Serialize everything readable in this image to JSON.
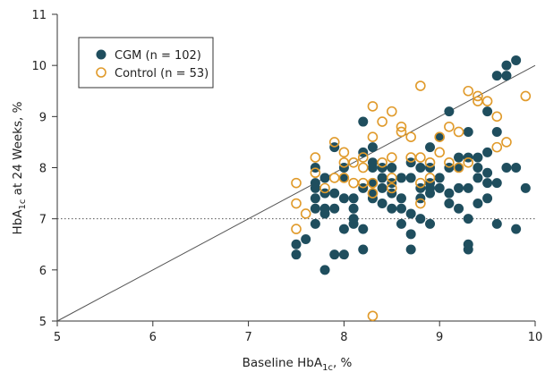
{
  "chart_data": {
    "type": "scatter",
    "xlim": [
      5,
      10
    ],
    "ylim": [
      5,
      11
    ],
    "x_ticks": [
      5,
      6,
      7,
      8,
      9,
      10
    ],
    "y_ticks": [
      5,
      6,
      7,
      8,
      9,
      10,
      11
    ],
    "xlabel": {
      "base": "Baseline HbA",
      "sub": "1c",
      "suffix": ", %"
    },
    "ylabel": {
      "base": "HbA",
      "sub": "1c",
      "suffix": " at 24 Weeks, %"
    },
    "reference_line": {
      "from": [
        5,
        5
      ],
      "to": [
        10,
        10
      ],
      "color": "#555555"
    },
    "threshold_line": {
      "y": 7,
      "style": "dotted",
      "color": "#555555"
    },
    "legend_position": "top-left",
    "series": [
      {
        "name": "CGM (n = 102)",
        "marker": "filled-circle",
        "color": "#1f4e5e",
        "points": [
          [
            7.5,
            6.3
          ],
          [
            7.5,
            6.5
          ],
          [
            7.6,
            6.6
          ],
          [
            7.7,
            6.9
          ],
          [
            7.7,
            7.2
          ],
          [
            7.7,
            7.4
          ],
          [
            7.7,
            7.6
          ],
          [
            7.7,
            7.7
          ],
          [
            7.7,
            8.0
          ],
          [
            7.8,
            6.0
          ],
          [
            7.8,
            7.1
          ],
          [
            7.8,
            7.2
          ],
          [
            7.8,
            7.5
          ],
          [
            7.8,
            7.8
          ],
          [
            7.9,
            6.3
          ],
          [
            7.9,
            7.5
          ],
          [
            7.9,
            8.4
          ],
          [
            8.0,
            6.3
          ],
          [
            8.0,
            6.8
          ],
          [
            8.0,
            7.4
          ],
          [
            8.0,
            7.8
          ],
          [
            8.1,
            6.9
          ],
          [
            8.1,
            7.0
          ],
          [
            8.1,
            7.2
          ],
          [
            8.1,
            7.4
          ],
          [
            8.2,
            6.4
          ],
          [
            8.2,
            6.8
          ],
          [
            8.2,
            7.6
          ],
          [
            8.2,
            8.3
          ],
          [
            8.2,
            8.9
          ],
          [
            8.3,
            7.4
          ],
          [
            8.3,
            7.5
          ],
          [
            8.3,
            7.7
          ],
          [
            8.3,
            8.0
          ],
          [
            8.3,
            8.1
          ],
          [
            8.3,
            8.4
          ],
          [
            8.4,
            7.3
          ],
          [
            8.4,
            7.6
          ],
          [
            8.4,
            7.8
          ],
          [
            8.5,
            7.2
          ],
          [
            8.5,
            7.5
          ],
          [
            8.5,
            7.7
          ],
          [
            8.6,
            6.9
          ],
          [
            8.6,
            7.2
          ],
          [
            8.6,
            7.8
          ],
          [
            8.7,
            6.4
          ],
          [
            8.7,
            6.7
          ],
          [
            8.7,
            7.1
          ],
          [
            8.7,
            7.8
          ],
          [
            8.7,
            8.1
          ],
          [
            8.8,
            7.0
          ],
          [
            8.8,
            7.4
          ],
          [
            8.8,
            8.0
          ],
          [
            8.9,
            6.9
          ],
          [
            8.9,
            7.5
          ],
          [
            8.9,
            7.6
          ],
          [
            8.9,
            7.7
          ],
          [
            8.9,
            8.0
          ],
          [
            9.0,
            7.8
          ],
          [
            9.0,
            8.6
          ],
          [
            9.1,
            7.5
          ],
          [
            9.1,
            8.0
          ],
          [
            9.1,
            9.1
          ],
          [
            9.2,
            7.6
          ],
          [
            9.2,
            8.0
          ],
          [
            9.2,
            8.2
          ],
          [
            9.3,
            6.4
          ],
          [
            9.3,
            6.5
          ],
          [
            9.3,
            7.0
          ],
          [
            9.3,
            7.6
          ],
          [
            9.3,
            8.2
          ],
          [
            9.3,
            8.7
          ],
          [
            9.4,
            7.8
          ],
          [
            9.4,
            8.0
          ],
          [
            9.4,
            8.2
          ],
          [
            9.5,
            7.4
          ],
          [
            9.5,
            7.7
          ],
          [
            9.5,
            8.3
          ],
          [
            9.5,
            9.1
          ],
          [
            9.6,
            6.9
          ],
          [
            9.6,
            7.7
          ],
          [
            9.6,
            8.7
          ],
          [
            9.6,
            9.8
          ],
          [
            9.7,
            8.0
          ],
          [
            9.7,
            9.8
          ],
          [
            9.7,
            10.0
          ],
          [
            9.8,
            6.8
          ],
          [
            9.8,
            8.0
          ],
          [
            9.8,
            10.1
          ],
          [
            9.9,
            7.6
          ],
          [
            8.4,
            8.0
          ],
          [
            8.6,
            7.4
          ],
          [
            8.9,
            8.4
          ],
          [
            9.1,
            7.3
          ],
          [
            9.4,
            7.3
          ],
          [
            9.5,
            7.9
          ],
          [
            8.0,
            8.0
          ],
          [
            8.5,
            8.0
          ],
          [
            8.8,
            7.6
          ],
          [
            9.2,
            7.2
          ],
          [
            7.9,
            7.2
          ],
          [
            9.0,
            7.6
          ]
        ]
      },
      {
        "name": "Control (n = 53)",
        "marker": "open-circle",
        "color": "#e09a2a",
        "points": [
          [
            7.5,
            6.8
          ],
          [
            7.5,
            7.3
          ],
          [
            7.5,
            7.7
          ],
          [
            7.6,
            7.1
          ],
          [
            7.7,
            7.9
          ],
          [
            7.7,
            8.2
          ],
          [
            7.8,
            7.6
          ],
          [
            7.9,
            7.8
          ],
          [
            7.9,
            8.5
          ],
          [
            8.0,
            7.8
          ],
          [
            8.0,
            8.1
          ],
          [
            8.0,
            8.3
          ],
          [
            8.1,
            8.1
          ],
          [
            8.1,
            7.7
          ],
          [
            8.2,
            7.7
          ],
          [
            8.2,
            8.0
          ],
          [
            8.2,
            8.2
          ],
          [
            8.3,
            7.5
          ],
          [
            8.3,
            7.7
          ],
          [
            8.3,
            8.6
          ],
          [
            8.3,
            9.2
          ],
          [
            8.3,
            5.1
          ],
          [
            8.4,
            8.1
          ],
          [
            8.4,
            8.9
          ],
          [
            8.5,
            7.6
          ],
          [
            8.5,
            7.8
          ],
          [
            8.5,
            8.2
          ],
          [
            8.5,
            9.1
          ],
          [
            8.6,
            8.7
          ],
          [
            8.6,
            8.8
          ],
          [
            8.7,
            8.2
          ],
          [
            8.7,
            8.6
          ],
          [
            8.8,
            7.3
          ],
          [
            8.8,
            7.7
          ],
          [
            8.8,
            8.2
          ],
          [
            8.8,
            9.6
          ],
          [
            8.9,
            7.8
          ],
          [
            8.9,
            8.1
          ],
          [
            9.0,
            8.3
          ],
          [
            9.0,
            8.6
          ],
          [
            9.1,
            8.1
          ],
          [
            9.1,
            8.8
          ],
          [
            9.2,
            8.0
          ],
          [
            9.2,
            8.7
          ],
          [
            9.3,
            8.1
          ],
          [
            9.3,
            9.5
          ],
          [
            9.4,
            9.3
          ],
          [
            9.4,
            9.4
          ],
          [
            9.5,
            9.3
          ],
          [
            9.6,
            9.0
          ],
          [
            9.6,
            8.4
          ],
          [
            9.7,
            8.5
          ],
          [
            9.9,
            9.4
          ]
        ]
      }
    ]
  }
}
